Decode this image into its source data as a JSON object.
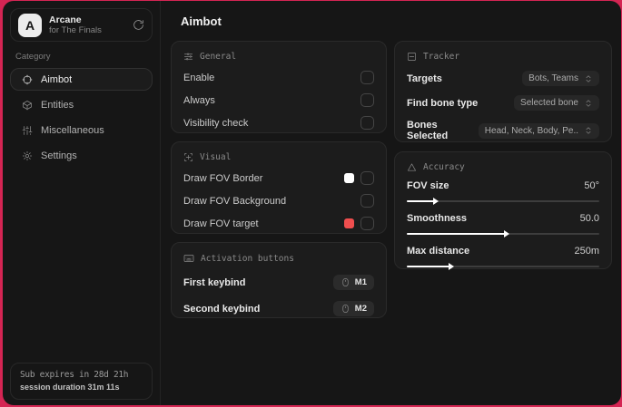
{
  "colors": {
    "frame_accent": "#d42553",
    "window_bg": "#161616",
    "card_bg": "#1c1c1c",
    "swatch_white": "#ffffff",
    "swatch_red": "#ef4e4e"
  },
  "sidebar": {
    "brand": {
      "logo_letter": "A",
      "name": "Arcane",
      "subtitle": "for The Finals"
    },
    "category_label": "Category",
    "items": [
      {
        "label": "Aimbot",
        "icon": "crosshair-icon",
        "active": true
      },
      {
        "label": "Entities",
        "icon": "cube-icon",
        "active": false
      },
      {
        "label": "Miscellaneous",
        "icon": "sliders-vertical-icon",
        "active": false
      },
      {
        "label": "Settings",
        "icon": "gear-icon",
        "active": false
      }
    ],
    "status": {
      "expires": "Sub expires in 28d 21h",
      "session": "session duration 31m 11s"
    }
  },
  "main": {
    "title": "Aimbot",
    "cards": {
      "general": {
        "title": "General",
        "rows": [
          {
            "label": "Enable",
            "checked": false
          },
          {
            "label": "Always",
            "checked": false
          },
          {
            "label": "Visibility check",
            "checked": false
          }
        ]
      },
      "visual": {
        "title": "Visual",
        "rows": [
          {
            "label": "Draw FOV Border",
            "swatch": "#ffffff",
            "checked": false
          },
          {
            "label": "Draw FOV Background",
            "checked": false
          },
          {
            "label": "Draw FOV target",
            "swatch": "#ef4e4e",
            "checked": false
          }
        ]
      },
      "activation": {
        "title": "Activation buttons",
        "rows": [
          {
            "label": "First keybind",
            "key": "M1"
          },
          {
            "label": "Second keybind",
            "key": "M2"
          }
        ]
      },
      "tracker": {
        "title": "Tracker",
        "rows": [
          {
            "label": "Targets",
            "value": "Bots, Teams"
          },
          {
            "label": "Find bone type",
            "value": "Selected bone"
          },
          {
            "label": "Bones Selected",
            "value": "Head, Neck, Body, Pe.."
          }
        ]
      },
      "accuracy": {
        "title": "Accuracy",
        "rows": [
          {
            "label": "FOV size",
            "value": "50°",
            "pct": 14
          },
          {
            "label": "Smoothness",
            "value": "50.0",
            "pct": 51
          },
          {
            "label": "Max distance",
            "value": "250m",
            "pct": 22
          }
        ]
      }
    }
  }
}
